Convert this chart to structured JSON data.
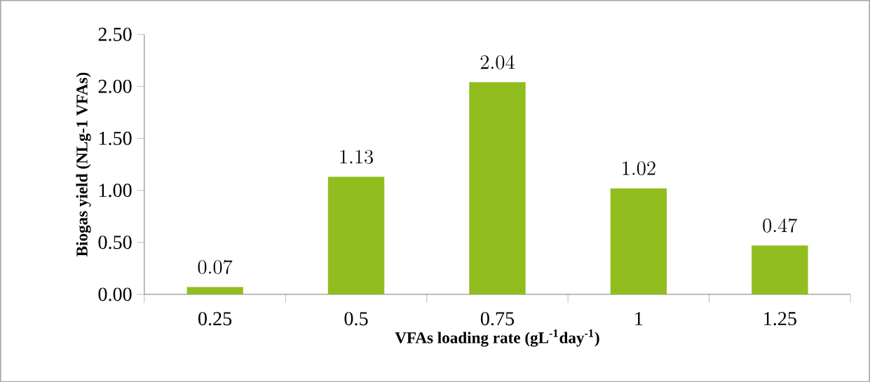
{
  "chart_data": {
    "type": "bar",
    "xlabel": "VFAs loading rate (gL$^{-1}$day$^{-1}$)",
    "ylabel": "Biogas yield (NLg-1 VFAs)",
    "categories": [
      "0.25",
      "0.5",
      "0.75",
      "1",
      "1.25"
    ],
    "values": [
      0.07,
      1.13,
      2.04,
      1.02,
      0.47
    ],
    "color": "#92bd1e",
    "ylim": [
      0,
      2.5
    ],
    "yticks": [
      {
        "value": 0,
        "label": "0.00"
      },
      {
        "value": 0.5,
        "label": "0.50"
      },
      {
        "value": 1,
        "label": "1.00"
      },
      {
        "value": 1.5,
        "label": "1.50"
      },
      {
        "value": 2,
        "label": "2.00"
      },
      {
        "value": 2.5,
        "label": "2.50"
      }
    ],
    "data_labels": true
  }
}
